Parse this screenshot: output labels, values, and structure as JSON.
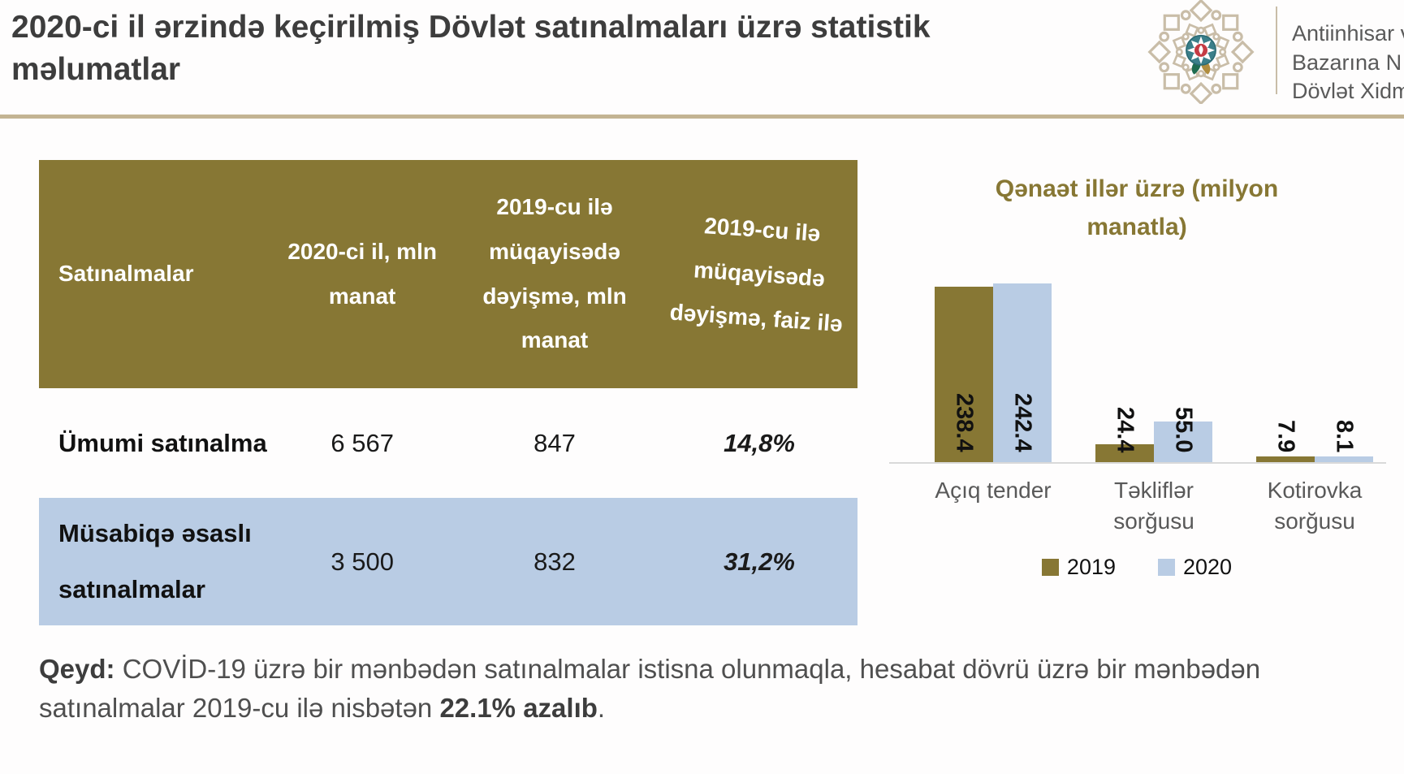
{
  "header": {
    "title": "2020-ci il ərzində keçirilmiş Dövlət satınalmaları üzrə statistik məlumatlar",
    "logo": {
      "icon": "state-service-emblem",
      "org_line_1": "Antiinhisar v",
      "org_line_2": "Bazarına N",
      "org_line_3": "Dövlət Xidm"
    }
  },
  "table": {
    "columns": [
      "Satınalmalar",
      "2020-ci il, mln manat",
      "2019-cu ilə müqayisədə dəyişmə, mln manat",
      "2019-cu ilə müqayisədə dəyişmə, faiz ilə"
    ],
    "rows": [
      {
        "label": "Ümumi satınalma",
        "mln_2020": "6 567",
        "change_mln": "847",
        "change_pct": "14,8%"
      },
      {
        "label": "Müsabiqə əsaslı satınalmalar",
        "mln_2020": "3 500",
        "change_mln": "832",
        "change_pct": "31,2%"
      }
    ]
  },
  "chart_data": {
    "type": "bar",
    "title": "Qənaət illər üzrə (milyon manatla)",
    "categories": [
      "Açıq tender",
      "Təkliflər sorğusu",
      "Kotirovka sorğusu"
    ],
    "series": [
      {
        "name": "2019",
        "color": "#877734",
        "values": [
          238.4,
          24.4,
          7.9
        ]
      },
      {
        "name": "2020",
        "color": "#b9cce4",
        "values": [
          242.4,
          55.0,
          8.1
        ]
      }
    ],
    "ylim": [
      0,
      250
    ],
    "grid": false,
    "legend_position": "bottom",
    "data_labels": "vertical, one decimal"
  },
  "note": {
    "label": "Qeyd:",
    "text_before": " COVİD-19 üzrə bir mənbədən satınalmalar istisna olunmaqla, hesabat dövrü üzrə bir mənbədən satınalmalar 2019-cu ilə nisbətən ",
    "bold": "22.1% azalıb",
    "suffix": "."
  },
  "colors": {
    "accent_olive": "#877734",
    "accent_blue": "#b9cce4",
    "divider_tan": "#c3b493",
    "title_text": "#3d3d3d",
    "category_gray": "#595959"
  }
}
